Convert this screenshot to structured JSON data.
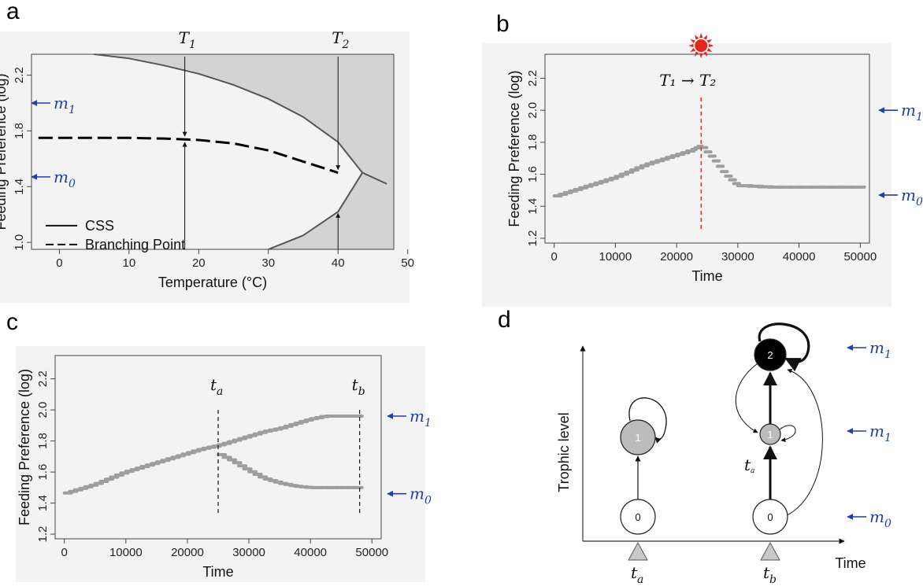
{
  "panels": {
    "a": {
      "letter": "a"
    },
    "b": {
      "letter": "b"
    },
    "c": {
      "letter": "c"
    },
    "d": {
      "letter": "d"
    }
  },
  "colors": {
    "marker": "#1f3fb0",
    "shade": "#d3d3d3",
    "points": "#9e9e9e",
    "shift": "#e8231a",
    "sun": "#e8231a"
  },
  "chart_data": [
    {
      "panel": "a",
      "type": "line",
      "xlabel": "Temperature (°C)",
      "ylabel": "Feeding Preference (log)",
      "xlim": [
        -4,
        48
      ],
      "ylim": [
        0.95,
        2.35
      ],
      "xticks": [
        0,
        10,
        20,
        30,
        40,
        50
      ],
      "yticks": [
        1.0,
        1.4,
        1.8,
        2.2
      ],
      "xtick_labels": [
        "0",
        "10",
        "20",
        "30",
        "40",
        "50"
      ],
      "ytick_labels": [
        "1.0",
        "1.4",
        "1.8",
        "2.2"
      ],
      "series": [
        {
          "name": "CSS",
          "style": "solid",
          "x": [
            5,
            10,
            15,
            20,
            25,
            30,
            35,
            40,
            43.5,
            47
          ],
          "y": [
            2.35,
            2.32,
            2.27,
            2.21,
            2.13,
            2.03,
            1.9,
            1.72,
            1.5,
            1.42
          ]
        },
        {
          "name": "CSS",
          "style": "solid",
          "x": [
            30,
            35,
            40,
            43.5
          ],
          "y": [
            0.95,
            1.05,
            1.22,
            1.5
          ]
        },
        {
          "name": "Branching Point",
          "style": "dashed",
          "x": [
            -3,
            5,
            10,
            15,
            20,
            25,
            30,
            35,
            40
          ],
          "y": [
            1.75,
            1.75,
            1.75,
            1.745,
            1.735,
            1.71,
            1.66,
            1.58,
            1.5
          ]
        }
      ],
      "annotations": [
        {
          "label": "T",
          "sub": "1",
          "x": 18
        },
        {
          "label": "T",
          "sub": "2",
          "x": 40
        }
      ],
      "markers": [
        {
          "label": "m",
          "sub": "1",
          "y": 2.0
        },
        {
          "label": "m",
          "sub": "0",
          "y": 1.47
        }
      ],
      "legend": {
        "placement": "bottom-left",
        "items": [
          "CSS",
          "Branching Point"
        ]
      }
    },
    {
      "panel": "b",
      "type": "scatter",
      "xlabel": "Time",
      "ylabel": "Feeding Preference (log)",
      "xlim": [
        -1500,
        51500
      ],
      "ylim": [
        1.17,
        2.35
      ],
      "xticks": [
        0,
        10000,
        20000,
        30000,
        40000,
        50000
      ],
      "yticks": [
        1.2,
        1.4,
        1.6,
        1.8,
        2.0,
        2.2
      ],
      "xtick_labels": [
        "0",
        "10000",
        "20000",
        "30000",
        "40000",
        "50000"
      ],
      "ytick_labels": [
        "1.2",
        "1.4",
        "1.6",
        "1.8",
        "2.0",
        "2.2"
      ],
      "shift_time": 24000,
      "shift_label": "T₁ → T₂",
      "series": [
        {
          "x": [
            0,
            2500,
            5000,
            7500,
            10000,
            12500,
            15000,
            17500,
            20000,
            22500,
            24000
          ],
          "y": [
            1.46,
            1.49,
            1.52,
            1.55,
            1.58,
            1.62,
            1.66,
            1.69,
            1.72,
            1.75,
            1.78
          ]
        },
        {
          "x": [
            24000,
            26000,
            28000,
            30000,
            35000,
            40000,
            45000,
            50000
          ],
          "y": [
            1.78,
            1.7,
            1.6,
            1.53,
            1.52,
            1.52,
            1.52,
            1.52
          ]
        }
      ],
      "markers": [
        {
          "label": "m",
          "sub": "1",
          "y": 2.0
        },
        {
          "label": "m",
          "sub": "0",
          "y": 1.47
        }
      ]
    },
    {
      "panel": "c",
      "type": "scatter",
      "xlabel": "Time",
      "ylabel": "Feeding Preference (log)",
      "xlim": [
        -1500,
        51500
      ],
      "ylim": [
        1.17,
        2.35
      ],
      "xticks": [
        0,
        10000,
        20000,
        30000,
        40000,
        50000
      ],
      "yticks": [
        1.2,
        1.4,
        1.6,
        1.8,
        2.0,
        2.2
      ],
      "xtick_labels": [
        "0",
        "10000",
        "20000",
        "30000",
        "40000",
        "50000"
      ],
      "ytick_labels": [
        "1.2",
        "1.4",
        "1.6",
        "1.8",
        "2.0",
        "2.2"
      ],
      "vlines": [
        {
          "x": 25000,
          "label": "t",
          "sub": "a"
        },
        {
          "x": 48000,
          "label": "t",
          "sub": "b"
        }
      ],
      "series": [
        {
          "x": [
            0,
            2500,
            5000,
            7500,
            10000,
            12500,
            15000,
            17500,
            20000,
            22500,
            25000
          ],
          "y": [
            1.46,
            1.49,
            1.52,
            1.56,
            1.6,
            1.63,
            1.66,
            1.69,
            1.72,
            1.75,
            1.77
          ]
        },
        {
          "x": [
            25000,
            27500,
            30000,
            32500,
            35000,
            37500,
            40000,
            42500,
            45000,
            48000
          ],
          "y": [
            1.77,
            1.8,
            1.83,
            1.86,
            1.88,
            1.91,
            1.94,
            1.96,
            1.96,
            1.96
          ]
        },
        {
          "x": [
            25000,
            27500,
            30000,
            32500,
            35000,
            37500,
            40000,
            42500,
            45000,
            48000
          ],
          "y": [
            1.72,
            1.67,
            1.61,
            1.56,
            1.53,
            1.51,
            1.5,
            1.5,
            1.5,
            1.5
          ]
        }
      ],
      "markers": [
        {
          "label": "m",
          "sub": "1",
          "y": 1.96
        },
        {
          "label": "m",
          "sub": "0",
          "y": 1.46
        }
      ]
    }
  ],
  "diagram_d": {
    "ylabel": "Trophic level",
    "xlabel": "Time",
    "nodes": [
      {
        "id": "a0",
        "label": "0"
      },
      {
        "id": "a1",
        "label": "1"
      },
      {
        "id": "b0",
        "label": "0"
      },
      {
        "id": "b1",
        "label": "1"
      },
      {
        "id": "b2",
        "label": "2"
      }
    ],
    "edge_label": "t",
    "edge_label_sub": "a",
    "time_marks": [
      {
        "label": "t",
        "sub": "a"
      },
      {
        "label": "t",
        "sub": "b"
      }
    ],
    "markers": [
      {
        "label": "m",
        "sub": "1"
      },
      {
        "label": "m",
        "sub": "1"
      },
      {
        "label": "m",
        "sub": "0"
      }
    ]
  }
}
